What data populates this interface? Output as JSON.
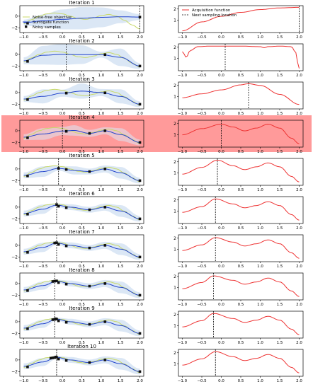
{
  "colors": {
    "objective": "#c8d96a",
    "surrogate": "#2244cc",
    "band": "#dbe7f5",
    "acquisition": "#ee3333",
    "highlight": "#ff9a9a",
    "sample": "#111111",
    "axis": "#000000"
  },
  "legend_left": {
    "placement": "upper-left",
    "entries": [
      {
        "label": "Noise-free objective",
        "style": "objective"
      },
      {
        "label": "Surrogate function",
        "style": "surrogate"
      },
      {
        "label": "Noisy samples",
        "style": "sample"
      }
    ]
  },
  "legend_right": {
    "placement": "upper-left",
    "entries": [
      {
        "label": "Acquisition function",
        "style": "acquisition"
      },
      {
        "label": "Next sampling location",
        "style": "next"
      }
    ]
  },
  "highlight_iteration": 4,
  "chart_data": {
    "type": "line",
    "grid": false,
    "xticks": [
      -1.0,
      -0.5,
      0.0,
      0.5,
      1.0,
      1.5,
      2.0
    ],
    "tick_labels_x": [
      "−1.0",
      "−0.5",
      "0.0",
      "0.5",
      "1.0",
      "1.5",
      "2.0"
    ],
    "xlim": [
      -1.1,
      2.1
    ],
    "left_ylim": [
      -2.8,
      1.8
    ],
    "left_yticks": [
      -2,
      0
    ],
    "left_ytick_labels": [
      "−2",
      "0"
    ],
    "right_ylim": [
      -0.1,
      2.3
    ],
    "iteration_label_prefix": "Iteration",
    "objective": {
      "x": [
        -1.0,
        -0.8,
        -0.6,
        -0.4,
        -0.2,
        0.0,
        0.2,
        0.4,
        0.6,
        0.8,
        1.0,
        1.2,
        1.4,
        1.6,
        1.8,
        2.0
      ],
      "y": [
        -1.3,
        -0.6,
        0.0,
        0.4,
        0.55,
        0.4,
        0.0,
        -0.4,
        -0.55,
        -0.3,
        0.1,
        0.3,
        0.0,
        -0.7,
        -1.5,
        -2.2
      ]
    },
    "panels": [
      {
        "iteration": 1,
        "samples": [
          [
            -0.9,
            -1.2
          ],
          [
            2.0,
            -0.15
          ]
        ],
        "next": 2.0,
        "surrogate": {
          "x": [
            -1.0,
            -0.5,
            0.0,
            0.5,
            1.0,
            1.5,
            2.0
          ],
          "y": [
            -1.1,
            -0.8,
            -0.55,
            -0.35,
            -0.2,
            -0.1,
            -0.15
          ],
          "sd": [
            0.5,
            1.1,
            1.7,
            1.9,
            1.7,
            1.1,
            0.5
          ]
        },
        "acquisition": {
          "x": [
            -1.0,
            -0.5,
            0.0,
            0.5,
            1.0,
            1.5,
            2.0
          ],
          "y": [
            0.05,
            0.85,
            1.35,
            1.7,
            1.95,
            2.1,
            2.15
          ]
        }
      },
      {
        "iteration": 2,
        "samples": [
          [
            -0.9,
            -1.2
          ],
          [
            1.1,
            -0.05
          ],
          [
            2.0,
            -2.0
          ]
        ],
        "next": 0.1,
        "surrogate": {
          "x": [
            -1.0,
            -0.5,
            0.0,
            0.5,
            1.0,
            1.5,
            2.0
          ],
          "y": [
            -1.1,
            -0.15,
            0.0,
            -0.05,
            -0.05,
            -0.5,
            -2.0
          ],
          "sd": [
            0.6,
            1.6,
            1.8,
            1.6,
            0.5,
            1.5,
            0.5
          ]
        },
        "acquisition": {
          "x": [
            -1.0,
            -0.9,
            -0.8,
            -0.6,
            -0.3,
            0.0,
            0.5,
            1.0,
            1.1,
            1.2,
            1.5,
            1.8,
            1.9,
            2.0
          ],
          "y": [
            1.6,
            1.1,
            1.7,
            2.05,
            2.1,
            2.1,
            2.1,
            2.05,
            1.95,
            2.05,
            2.1,
            2.05,
            1.6,
            0.1
          ]
        }
      },
      {
        "iteration": 3,
        "samples": [
          [
            -0.9,
            -1.2
          ],
          [
            0.1,
            -0.1
          ],
          [
            1.1,
            -0.05
          ],
          [
            2.0,
            -2.0
          ]
        ],
        "next": 0.7,
        "surrogate": {
          "x": [
            -1.0,
            -0.5,
            0.0,
            0.5,
            1.0,
            1.5,
            2.0
          ],
          "y": [
            -1.1,
            -0.65,
            -0.1,
            0.25,
            0.0,
            -0.65,
            -2.0
          ],
          "sd": [
            0.5,
            1.2,
            0.6,
            1.3,
            0.6,
            1.2,
            0.5
          ]
        },
        "acquisition": {
          "x": [
            -1.0,
            -0.5,
            0.0,
            0.5,
            0.7,
            1.0,
            1.5,
            2.0
          ],
          "y": [
            0.9,
            1.25,
            1.6,
            2.05,
            2.15,
            2.0,
            1.2,
            0.3
          ]
        }
      },
      {
        "iteration": 4,
        "samples": [
          [
            -0.9,
            -1.2
          ],
          [
            0.1,
            -0.1
          ],
          [
            0.7,
            -0.45
          ],
          [
            1.1,
            0.0
          ],
          [
            2.0,
            -2.0
          ]
        ],
        "next": 0.0,
        "surrogate": {
          "x": [
            -1.0,
            -0.5,
            0.0,
            0.3,
            0.7,
            1.1,
            1.5,
            2.0
          ],
          "y": [
            -1.1,
            -0.55,
            -0.05,
            0.05,
            -0.45,
            0.0,
            -0.65,
            -2.0
          ],
          "sd": [
            0.5,
            1.0,
            0.7,
            0.9,
            0.6,
            0.6,
            1.1,
            0.5
          ]
        },
        "acquisition": {
          "x": [
            -1.0,
            -0.5,
            0.0,
            0.3,
            0.6,
            0.9,
            1.2,
            1.5,
            1.8,
            2.0
          ],
          "y": [
            1.0,
            1.55,
            1.95,
            1.7,
            1.35,
            1.6,
            1.95,
            1.6,
            0.7,
            0.2
          ]
        }
      },
      {
        "iteration": 5,
        "samples": [
          [
            -0.9,
            -1.2
          ],
          [
            -0.1,
            0.1
          ],
          [
            0.1,
            -0.1
          ],
          [
            0.7,
            -0.45
          ],
          [
            1.1,
            0.0
          ],
          [
            2.0,
            -2.0
          ]
        ],
        "next": -0.1,
        "surrogate": {
          "x": [
            -1.0,
            -0.5,
            -0.1,
            0.3,
            0.7,
            1.1,
            1.5,
            2.0
          ],
          "y": [
            -1.1,
            -0.45,
            0.1,
            -0.25,
            -0.45,
            0.0,
            -0.65,
            -2.0
          ],
          "sd": [
            0.5,
            0.9,
            0.4,
            0.7,
            0.5,
            0.6,
            1.0,
            0.5
          ]
        },
        "acquisition": {
          "x": [
            -1.0,
            -0.5,
            -0.1,
            0.3,
            0.6,
            0.9,
            1.2,
            1.5,
            1.8,
            2.0
          ],
          "y": [
            0.9,
            1.5,
            2.15,
            1.65,
            1.3,
            1.55,
            1.9,
            1.55,
            0.7,
            0.2
          ]
        }
      },
      {
        "iteration": 6,
        "samples": [
          [
            -0.9,
            -1.2
          ],
          [
            -0.15,
            0.45
          ],
          [
            -0.1,
            0.15
          ],
          [
            0.1,
            -0.1
          ],
          [
            0.7,
            -0.45
          ],
          [
            1.1,
            0.0
          ],
          [
            2.0,
            -2.0
          ]
        ],
        "next": -0.15,
        "surrogate": {
          "x": [
            -1.0,
            -0.5,
            -0.15,
            0.2,
            0.7,
            1.1,
            1.5,
            2.0
          ],
          "y": [
            -1.1,
            -0.35,
            0.35,
            0.0,
            -0.45,
            0.0,
            -0.65,
            -2.0
          ],
          "sd": [
            0.5,
            0.8,
            0.3,
            0.5,
            0.5,
            0.6,
            1.0,
            0.5
          ]
        },
        "acquisition": {
          "x": [
            -1.0,
            -0.5,
            -0.15,
            0.3,
            0.6,
            0.9,
            1.2,
            1.5,
            1.8,
            2.0
          ],
          "y": [
            0.9,
            1.4,
            2.1,
            1.65,
            1.3,
            1.5,
            1.85,
            1.5,
            0.7,
            0.2
          ]
        }
      },
      {
        "iteration": 7,
        "samples": [
          [
            -0.9,
            -1.2
          ],
          [
            -0.2,
            0.4
          ],
          [
            -0.15,
            0.45
          ],
          [
            -0.1,
            0.15
          ],
          [
            0.1,
            -0.1
          ],
          [
            0.7,
            -0.45
          ],
          [
            1.1,
            0.0
          ],
          [
            2.0,
            -2.0
          ]
        ],
        "next": -0.15,
        "surrogate": {
          "x": [
            -1.0,
            -0.5,
            -0.15,
            0.2,
            0.7,
            1.1,
            1.5,
            2.0
          ],
          "y": [
            -1.1,
            -0.35,
            0.4,
            0.0,
            -0.45,
            0.0,
            -0.65,
            -2.0
          ],
          "sd": [
            0.5,
            0.8,
            0.3,
            0.5,
            0.5,
            0.6,
            1.0,
            0.5
          ]
        },
        "acquisition": {
          "x": [
            -1.0,
            -0.5,
            -0.15,
            0.3,
            0.6,
            0.9,
            1.2,
            1.5,
            1.8,
            2.0
          ],
          "y": [
            0.9,
            1.4,
            2.05,
            1.65,
            1.3,
            1.5,
            1.85,
            1.5,
            0.7,
            0.2
          ]
        }
      },
      {
        "iteration": 8,
        "samples": [
          [
            -0.9,
            -1.2
          ],
          [
            -0.25,
            0.35
          ],
          [
            -0.2,
            0.4
          ],
          [
            -0.15,
            0.45
          ],
          [
            -0.1,
            0.15
          ],
          [
            0.1,
            -0.1
          ],
          [
            0.7,
            -0.45
          ],
          [
            1.1,
            0.0
          ],
          [
            2.0,
            -2.0
          ]
        ],
        "next": -0.2,
        "surrogate": {
          "x": [
            -1.0,
            -0.5,
            -0.15,
            0.2,
            0.7,
            1.1,
            1.5,
            2.0
          ],
          "y": [
            -1.1,
            -0.35,
            0.4,
            0.0,
            -0.45,
            0.0,
            -0.65,
            -2.0
          ],
          "sd": [
            0.5,
            0.7,
            0.25,
            0.5,
            0.5,
            0.6,
            1.0,
            0.5
          ]
        },
        "acquisition": {
          "x": [
            -1.0,
            -0.5,
            -0.2,
            0.3,
            0.6,
            0.9,
            1.2,
            1.5,
            1.8,
            2.0
          ],
          "y": [
            0.9,
            1.45,
            2.05,
            1.65,
            1.3,
            1.5,
            1.85,
            1.5,
            0.7,
            0.2
          ]
        }
      },
      {
        "iteration": 9,
        "samples": [
          [
            -0.9,
            -1.2
          ],
          [
            -0.25,
            0.35
          ],
          [
            -0.2,
            0.4
          ],
          [
            -0.17,
            0.5
          ],
          [
            -0.15,
            0.45
          ],
          [
            -0.1,
            0.15
          ],
          [
            0.1,
            -0.1
          ],
          [
            0.7,
            -0.45
          ],
          [
            1.1,
            0.0
          ],
          [
            2.0,
            -2.0
          ]
        ],
        "next": -0.2,
        "surrogate": {
          "x": [
            -1.0,
            -0.5,
            -0.15,
            0.2,
            0.7,
            1.1,
            1.5,
            2.0
          ],
          "y": [
            -1.1,
            -0.35,
            0.45,
            0.0,
            -0.45,
            0.0,
            -0.65,
            -2.0
          ],
          "sd": [
            0.5,
            0.7,
            0.25,
            0.5,
            0.5,
            0.6,
            1.0,
            0.5
          ]
        },
        "acquisition": {
          "x": [
            -1.0,
            -0.5,
            -0.2,
            0.3,
            0.6,
            0.9,
            1.2,
            1.5,
            1.8,
            2.0
          ],
          "y": [
            0.9,
            1.45,
            2.1,
            1.65,
            1.3,
            1.5,
            1.85,
            1.5,
            0.7,
            0.2
          ]
        }
      },
      {
        "iteration": 10,
        "samples": [
          [
            -0.9,
            -1.2
          ],
          [
            -0.3,
            0.3
          ],
          [
            -0.25,
            0.35
          ],
          [
            -0.2,
            0.4
          ],
          [
            -0.17,
            0.5
          ],
          [
            -0.15,
            0.45
          ],
          [
            -0.1,
            0.15
          ],
          [
            0.1,
            -0.1
          ],
          [
            0.7,
            -0.45
          ],
          [
            1.1,
            0.0
          ],
          [
            2.0,
            -2.0
          ]
        ],
        "next": -0.15,
        "surrogate": {
          "x": [
            -1.0,
            -0.5,
            -0.15,
            0.2,
            0.7,
            1.1,
            1.5,
            2.0
          ],
          "y": [
            -1.1,
            -0.35,
            0.45,
            0.0,
            -0.45,
            0.0,
            -0.65,
            -2.0
          ],
          "sd": [
            0.5,
            0.7,
            0.25,
            0.5,
            0.5,
            0.6,
            1.0,
            0.5
          ]
        },
        "acquisition": {
          "x": [
            -1.0,
            -0.5,
            -0.15,
            0.3,
            0.6,
            0.9,
            1.2,
            1.5,
            1.8,
            2.0
          ],
          "y": [
            0.9,
            1.45,
            2.1,
            1.65,
            1.3,
            1.5,
            1.85,
            1.5,
            0.7,
            0.2
          ]
        }
      }
    ]
  }
}
